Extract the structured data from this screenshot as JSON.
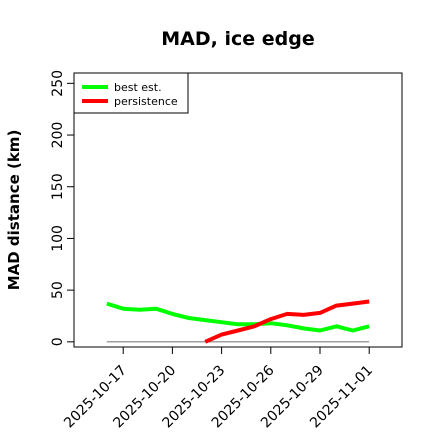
{
  "chart_data": {
    "type": "line",
    "title": "MAD, ice edge",
    "xlabel": "",
    "ylabel": "MAD distance (km)",
    "ylim": [
      -5,
      260
    ],
    "yticks": [
      0,
      50,
      100,
      150,
      200,
      250
    ],
    "xtick_labels": [
      "2025-10-17",
      "2025-10-20",
      "2025-10-23",
      "2025-10-26",
      "2025-10-29",
      "2025-11-01"
    ],
    "xlim": [
      "2025-10-14",
      "2025-11-03"
    ],
    "legend_position": "top-left",
    "reference_line": {
      "y": 0,
      "x_start": "2025-10-16",
      "x_end": "2025-11-01",
      "color": "#808080"
    },
    "series": [
      {
        "name": "best est.",
        "color": "#00ff00",
        "points": [
          [
            "2025-10-16",
            37
          ],
          [
            "2025-10-17",
            32
          ],
          [
            "2025-10-18",
            31
          ],
          [
            "2025-10-19",
            32
          ],
          [
            "2025-10-20",
            27
          ],
          [
            "2025-10-21",
            23
          ],
          [
            "2025-10-22",
            21
          ],
          [
            "2025-10-23",
            19
          ],
          [
            "2025-10-24",
            17
          ],
          [
            "2025-10-25",
            17
          ],
          [
            "2025-10-26",
            18
          ],
          [
            "2025-10-27",
            16
          ],
          [
            "2025-10-28",
            13
          ],
          [
            "2025-10-29",
            11
          ],
          [
            "2025-10-30",
            15
          ],
          [
            "2025-10-31",
            11
          ],
          [
            "2025-11-01",
            15
          ]
        ]
      },
      {
        "name": "persistence",
        "color": "#ff0000",
        "points": [
          [
            "2025-10-22",
            0
          ],
          [
            "2025-10-23",
            7
          ],
          [
            "2025-10-24",
            11
          ],
          [
            "2025-10-25",
            15
          ],
          [
            "2025-10-26",
            22
          ],
          [
            "2025-10-27",
            27
          ],
          [
            "2025-10-28",
            26
          ],
          [
            "2025-10-29",
            28
          ],
          [
            "2025-10-30",
            35
          ],
          [
            "2025-10-31",
            37
          ],
          [
            "2025-11-01",
            39
          ]
        ]
      }
    ]
  }
}
